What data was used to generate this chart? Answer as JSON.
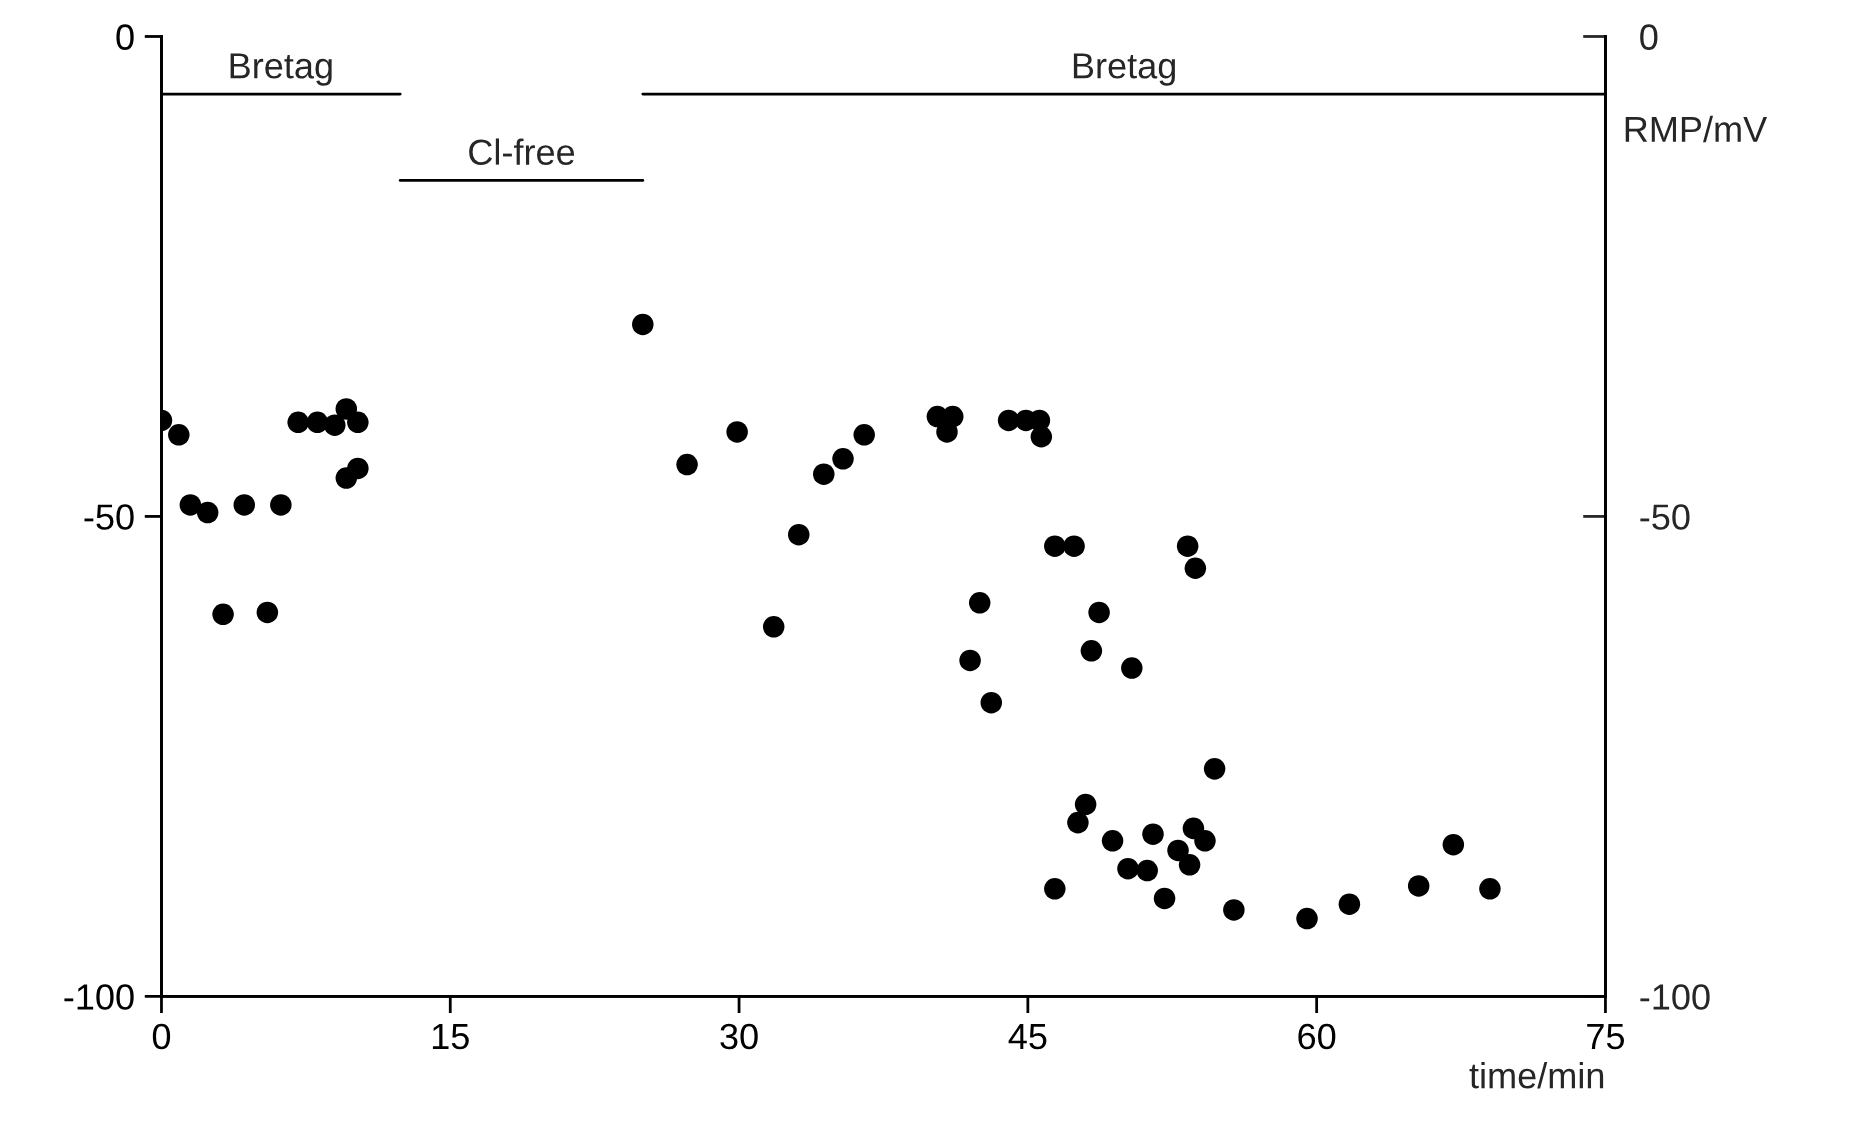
{
  "chart_data": {
    "type": "scatter",
    "xlabel": "time/min",
    "y2label": "RMP/mV",
    "series": [
      {
        "color": "#000000",
        "marker": "circle",
        "x": [
          0.0,
          0.9,
          1.5,
          2.4,
          3.2,
          4.3,
          5.5,
          6.2,
          7.1,
          8.1,
          9.0,
          9.6,
          9.6,
          10.2,
          10.2,
          25.0,
          27.3,
          29.9,
          31.8,
          33.1,
          34.4,
          35.4,
          36.5,
          40.3,
          40.8,
          41.1,
          42.0,
          42.5,
          43.1,
          44.0,
          44.9,
          45.6,
          45.7,
          46.4,
          47.4,
          46.4,
          47.6,
          48.0,
          48.3,
          48.7,
          49.4,
          50.2,
          50.4,
          51.2,
          51.5,
          52.1,
          52.8,
          53.3,
          53.4,
          53.6,
          53.7,
          54.2,
          54.7,
          55.7,
          59.5,
          61.7,
          65.3,
          67.1,
          69.0
        ],
        "values": [
          -40,
          -41.5,
          -48.8,
          -49.6,
          -60.2,
          -48.8,
          -60,
          -48.8,
          -40.2,
          -40.2,
          -40.5,
          -38.8,
          -46,
          -40.2,
          -45,
          -30,
          -44.6,
          -41.2,
          -61.5,
          -51.9,
          -45.6,
          -44,
          -41.5,
          -39.6,
          -41.2,
          -39.6,
          -65,
          -59,
          -69.4,
          -40,
          -40,
          -40,
          -41.7,
          -53.1,
          -53.1,
          -88.8,
          -81.9,
          -80,
          -64,
          -60,
          -83.8,
          -86.7,
          -65.8,
          -86.9,
          -83.1,
          -89.8,
          -84.8,
          -53.1,
          -86.3,
          -82.5,
          -55.4,
          -83.8,
          -76.3,
          -91,
          -91.9,
          -90.4,
          -88.5,
          -84.2,
          -88.8
        ]
      },
      {
        "type": "line",
        "name": "Bretag",
        "color": "#000000",
        "x": [
          0,
          12.4
        ],
        "values": [
          -6,
          -6
        ]
      },
      {
        "type": "line",
        "name": "Cl-free",
        "color": "#000000",
        "x": [
          12.4,
          25
        ],
        "values": [
          -15,
          -15
        ]
      },
      {
        "type": "line",
        "name": "Bretag",
        "color": "#000000",
        "x": [
          25,
          75
        ],
        "values": [
          -6,
          -6
        ]
      }
    ],
    "xlim": [
      0,
      75
    ],
    "xticks": [
      0,
      15,
      30,
      45,
      60,
      75
    ],
    "ylim": [
      -100,
      0
    ],
    "yticks": [
      {
        "value": -100,
        "label": "-100"
      },
      {
        "value": -50,
        "label": "-50"
      },
      0
    ],
    "y2lim": [
      -100,
      0
    ],
    "y2ticks": [
      {
        "value": -100,
        "label": "-100"
      },
      {
        "value": -50,
        "label": "-50"
      },
      0
    ],
    "grid": false
  }
}
